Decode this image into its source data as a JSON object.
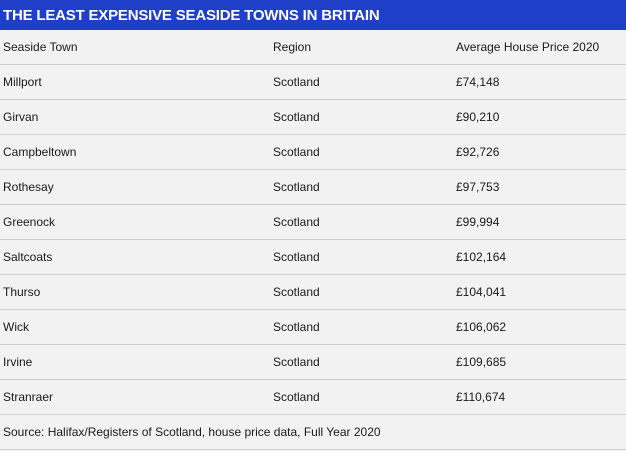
{
  "title": "THE LEAST EXPENSIVE SEASIDE TOWNS IN BRITAIN",
  "columns": [
    "Seaside Town",
    "Region",
    "Average House Price 2020"
  ],
  "rows": [
    [
      "Millport",
      "Scotland",
      "£74,148"
    ],
    [
      "Girvan",
      "Scotland",
      "£90,210"
    ],
    [
      "Campbeltown",
      "Scotland",
      "£92,726"
    ],
    [
      "Rothesay",
      "Scotland",
      "£97,753"
    ],
    [
      "Greenock",
      "Scotland",
      "£99,994"
    ],
    [
      "Saltcoats",
      "Scotland",
      "£102,164"
    ],
    [
      "Thurso",
      "Scotland",
      "£104,041"
    ],
    [
      "Wick",
      "Scotland",
      "£106,062"
    ],
    [
      "Irvine",
      "Scotland",
      "£109,685"
    ],
    [
      "Stranraer",
      "Scotland",
      "£110,674"
    ]
  ],
  "source": "Source: Halifax/Registers of Scotland, house price data, Full Year 2020",
  "colors": {
    "title_bar": "#1f3fc9",
    "background": "#f2f2f2",
    "divider": "#cfcfcf"
  }
}
